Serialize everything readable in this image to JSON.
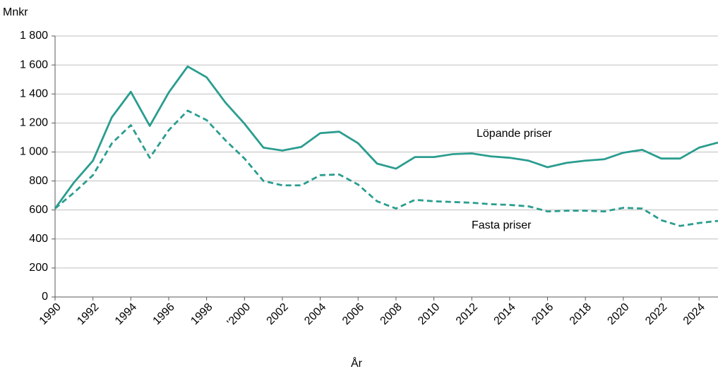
{
  "chart_data": {
    "type": "line",
    "y_label": "Mnkr",
    "x_label": "År",
    "x": [
      1990,
      1991,
      1992,
      1993,
      1994,
      1995,
      1996,
      1997,
      1998,
      1999,
      2000,
      2001,
      2002,
      2003,
      2004,
      2005,
      2006,
      2007,
      2008,
      2009,
      2010,
      2011,
      2012,
      2013,
      2014,
      2015,
      2016,
      2017,
      2018,
      2019,
      2020,
      2021,
      2022,
      2023,
      2024,
      2025
    ],
    "series": [
      {
        "name": "Löpande priser",
        "color": "#2a9d8f",
        "line_style": "solid",
        "values": [
          610,
          790,
          940,
          1240,
          1415,
          1180,
          1410,
          1590,
          1515,
          1340,
          1195,
          1030,
          1010,
          1035,
          1130,
          1140,
          1060,
          920,
          885,
          965,
          965,
          985,
          990,
          970,
          960,
          940,
          895,
          925,
          940,
          950,
          995,
          1015,
          955,
          955,
          1030,
          1065
        ]
      },
      {
        "name": "Fasta priser",
        "color": "#2a9d8f",
        "line_style": "dashed",
        "values": [
          610,
          720,
          840,
          1060,
          1185,
          960,
          1150,
          1285,
          1220,
          1080,
          955,
          800,
          770,
          770,
          840,
          845,
          775,
          660,
          610,
          670,
          660,
          655,
          650,
          640,
          635,
          625,
          590,
          595,
          595,
          590,
          615,
          610,
          530,
          490,
          510,
          525
        ]
      }
    ],
    "xlim": [
      1990,
      2025
    ],
    "xticks": [
      1990,
      1992,
      1994,
      1996,
      1998,
      {
        "value": 2000,
        "label": "'2000"
      },
      2002,
      2004,
      2006,
      2008,
      2010,
      2012,
      2014,
      2016,
      2018,
      2020,
      2022,
      2024
    ],
    "ylim": [
      0,
      1800
    ],
    "yticks": [
      0,
      200,
      400,
      600,
      800,
      {
        "value": 1000,
        "label": "1 000"
      },
      {
        "value": 1200,
        "label": "1 200"
      },
      {
        "value": 1400,
        "label": "1 400"
      },
      {
        "value": 1600,
        "label": "1 600"
      },
      {
        "value": 1800,
        "label": "1 800"
      }
    ],
    "grid": true
  }
}
